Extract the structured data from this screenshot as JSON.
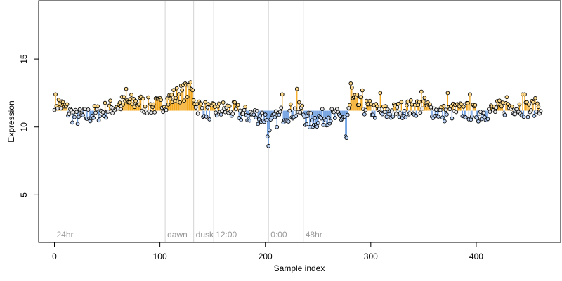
{
  "chart_data": {
    "type": "scatter",
    "title": "",
    "xlabel": "Sample index",
    "ylabel": "Expression",
    "xlim": [
      -15,
      480
    ],
    "ylim": [
      1.5,
      19.3
    ],
    "x_ticks": [
      0,
      100,
      200,
      300,
      400
    ],
    "y_ticks": [
      5,
      10,
      15
    ],
    "baseline": 11.2,
    "grid": false,
    "legend": "none",
    "colors": {
      "above": "#f4a81d",
      "below": "#6d9ee0",
      "flat": "#999999",
      "period_line": "#d3d3d3",
      "point_stroke": "#000000"
    },
    "periods": [
      {
        "label": "24hr",
        "start": 0
      },
      {
        "label": "dawn",
        "start": 105
      },
      {
        "label": "dusk",
        "start": 132
      },
      {
        "label": "12:00",
        "start": 151
      },
      {
        "label": "0:00",
        "start": 203
      },
      {
        "label": "48hr",
        "start": 236
      }
    ],
    "anchors": [
      [
        0,
        11.9
      ],
      [
        10,
        11.4
      ],
      [
        20,
        10.7
      ],
      [
        30,
        10.8
      ],
      [
        40,
        11.0
      ],
      [
        50,
        11.3
      ],
      [
        60,
        11.6
      ],
      [
        70,
        11.8
      ],
      [
        80,
        11.8
      ],
      [
        90,
        11.5
      ],
      [
        100,
        11.6
      ],
      [
        110,
        12.1
      ],
      [
        120,
        12.5
      ],
      [
        130,
        12.7
      ],
      [
        135,
        11.6
      ],
      [
        145,
        11.2
      ],
      [
        150,
        11.1
      ],
      [
        160,
        11.3
      ],
      [
        170,
        11.2
      ],
      [
        180,
        10.9
      ],
      [
        190,
        10.9
      ],
      [
        200,
        10.7
      ],
      [
        205,
        10.2
      ],
      [
        215,
        10.9
      ],
      [
        225,
        11.1
      ],
      [
        235,
        11.2
      ],
      [
        240,
        10.4
      ],
      [
        250,
        10.6
      ],
      [
        260,
        10.8
      ],
      [
        270,
        10.7
      ],
      [
        278,
        10.8
      ],
      [
        282,
        12.0
      ],
      [
        290,
        11.6
      ],
      [
        300,
        11.3
      ],
      [
        310,
        11.0
      ],
      [
        320,
        11.1
      ],
      [
        330,
        11.3
      ],
      [
        340,
        11.4
      ],
      [
        350,
        11.6
      ],
      [
        360,
        11.2
      ],
      [
        370,
        11.0
      ],
      [
        380,
        11.2
      ],
      [
        390,
        11.2
      ],
      [
        400,
        11.0
      ],
      [
        410,
        11.1
      ],
      [
        420,
        11.3
      ],
      [
        430,
        11.5
      ],
      [
        440,
        11.5
      ],
      [
        450,
        11.3
      ],
      [
        460,
        11.6
      ]
    ],
    "spikes": [
      [
        68,
        12.8
      ],
      [
        124,
        13.2
      ],
      [
        127,
        13.1
      ],
      [
        128,
        12.9
      ],
      [
        202,
        9.3
      ],
      [
        203,
        8.6
      ],
      [
        216,
        12.4
      ],
      [
        230,
        12.8
      ],
      [
        276,
        9.3
      ],
      [
        277,
        9.2
      ],
      [
        281,
        13.2
      ],
      [
        282,
        12.9
      ],
      [
        292,
        12.7
      ],
      [
        309,
        12.5
      ],
      [
        348,
        12.6
      ],
      [
        373,
        12.5
      ],
      [
        394,
        12.4
      ],
      [
        429,
        12.2
      ],
      [
        444,
        12.4
      ],
      [
        446,
        12.4
      ],
      [
        462,
        12.2
      ]
    ],
    "series_count": 462
  }
}
